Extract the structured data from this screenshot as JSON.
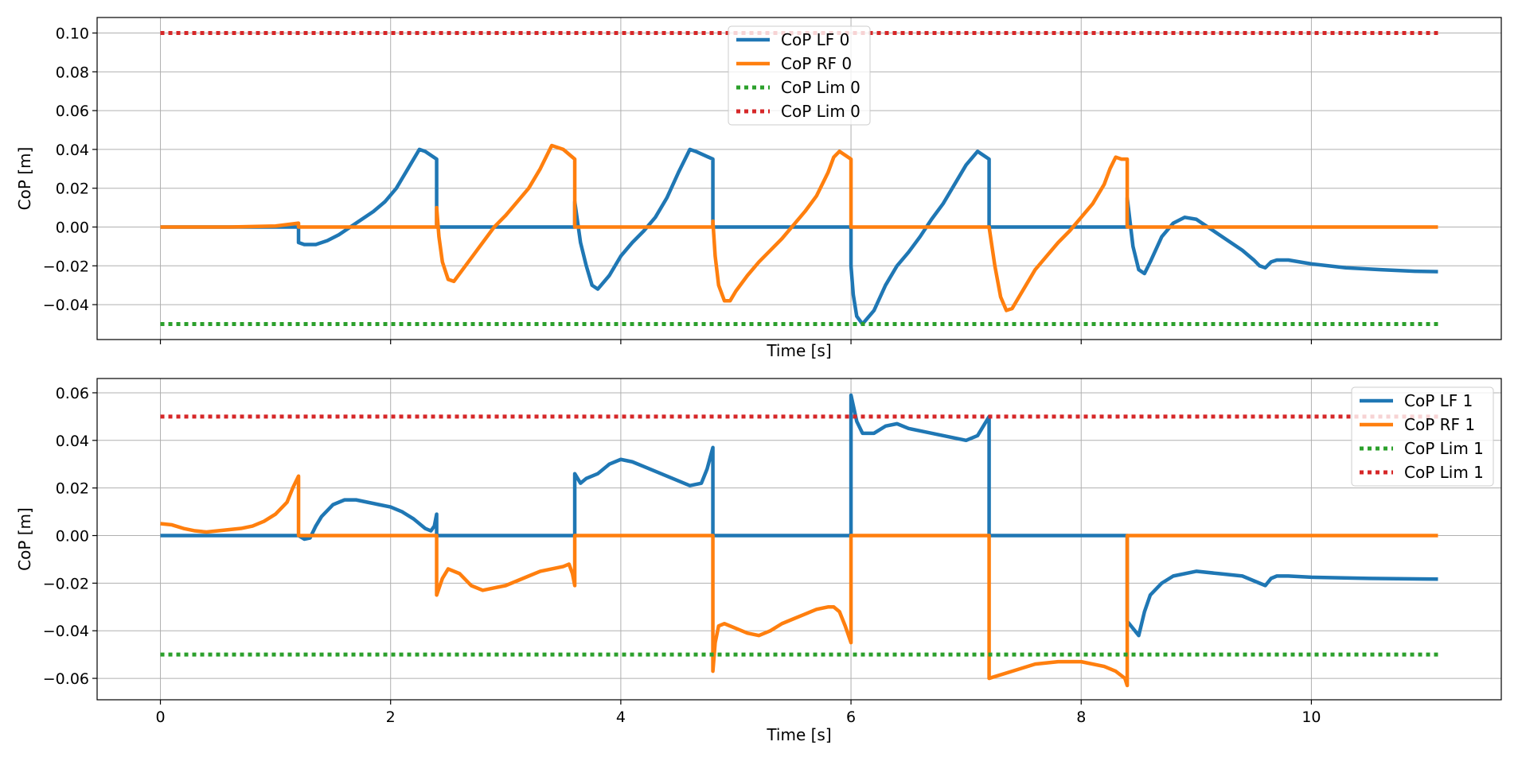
{
  "chart_data": [
    {
      "type": "line",
      "xlabel": "Time [s]",
      "ylabel": "CoP [m]",
      "xlim": [
        -0.55,
        11.65
      ],
      "ylim": [
        -0.058,
        0.108
      ],
      "xticks": [
        0,
        2,
        4,
        6,
        8,
        10
      ],
      "show_xtick_labels": false,
      "yticks": [
        -0.04,
        -0.02,
        0.0,
        0.02,
        0.04,
        0.06,
        0.08,
        0.1
      ],
      "ytick_labels": [
        "−0.04",
        "−0.02",
        "0.00",
        "0.02",
        "0.04",
        "0.06",
        "0.08",
        "0.10"
      ],
      "grid": true,
      "legend_position": "top-center",
      "series": [
        {
          "name": "CoP LF 0",
          "color": "#1f77b4",
          "style": "solid",
          "x": [
            0,
            1.2,
            1.2,
            1.2,
            1.25,
            1.35,
            1.45,
            1.55,
            1.65,
            1.75,
            1.85,
            1.95,
            2.05,
            2.15,
            2.25,
            2.3,
            2.4,
            2.4,
            3.6,
            3.6,
            3.65,
            3.7,
            3.75,
            3.8,
            3.9,
            4.0,
            4.1,
            4.2,
            4.3,
            4.4,
            4.5,
            4.6,
            4.65,
            4.8,
            4.8,
            6.0,
            6.0,
            6.02,
            6.05,
            6.1,
            6.2,
            6.3,
            6.4,
            6.5,
            6.6,
            6.7,
            6.8,
            6.9,
            7.0,
            7.1,
            7.2,
            7.2,
            8.4,
            8.4,
            8.45,
            8.5,
            8.55,
            8.6,
            8.7,
            8.8,
            8.9,
            9.0,
            9.1,
            9.2,
            9.3,
            9.4,
            9.5,
            9.55,
            9.6,
            9.65,
            9.7,
            9.8,
            10.0,
            10.3,
            10.6,
            10.9,
            11.1
          ],
          "y": [
            0.0,
            0.0,
            0.0,
            -0.008,
            -0.009,
            -0.009,
            -0.007,
            -0.004,
            0.0,
            0.004,
            0.008,
            0.013,
            0.02,
            0.03,
            0.04,
            0.039,
            0.035,
            0.0,
            0.0,
            0.013,
            -0.008,
            -0.02,
            -0.03,
            -0.032,
            -0.025,
            -0.015,
            -0.008,
            -0.002,
            0.005,
            0.015,
            0.028,
            0.04,
            0.039,
            0.035,
            0.0,
            0.0,
            -0.02,
            -0.035,
            -0.046,
            -0.05,
            -0.043,
            -0.03,
            -0.02,
            -0.013,
            -0.005,
            0.004,
            0.012,
            0.022,
            0.032,
            0.039,
            0.035,
            0.0,
            0.0,
            0.015,
            -0.01,
            -0.022,
            -0.024,
            -0.018,
            -0.005,
            0.002,
            0.005,
            0.004,
            0.0,
            -0.004,
            -0.008,
            -0.012,
            -0.017,
            -0.02,
            -0.021,
            -0.018,
            -0.017,
            -0.017,
            -0.019,
            -0.021,
            -0.022,
            -0.0228,
            -0.023
          ]
        },
        {
          "name": "CoP RF 0",
          "color": "#ff7f0e",
          "style": "solid",
          "x": [
            0,
            0.6,
            1.0,
            1.2,
            1.2,
            2.4,
            2.4,
            2.42,
            2.45,
            2.5,
            2.55,
            2.6,
            2.7,
            2.8,
            2.9,
            3.0,
            3.1,
            3.2,
            3.3,
            3.4,
            3.5,
            3.6,
            3.6,
            4.8,
            4.8,
            4.82,
            4.85,
            4.9,
            4.95,
            5.0,
            5.1,
            5.2,
            5.3,
            5.4,
            5.5,
            5.6,
            5.7,
            5.8,
            5.85,
            5.9,
            6.0,
            6.0,
            7.2,
            7.2,
            7.25,
            7.3,
            7.35,
            7.4,
            7.5,
            7.6,
            7.7,
            7.8,
            7.9,
            8.0,
            8.1,
            8.2,
            8.25,
            8.3,
            8.35,
            8.38,
            8.4,
            8.4,
            11.1
          ],
          "y": [
            0.0,
            0.0,
            0.0005,
            0.002,
            0.0,
            0.0,
            0.01,
            -0.005,
            -0.018,
            -0.027,
            -0.028,
            -0.024,
            -0.016,
            -0.008,
            0.0,
            0.006,
            0.013,
            0.02,
            0.03,
            0.042,
            0.04,
            0.035,
            0.0,
            0.0,
            0.003,
            -0.015,
            -0.03,
            -0.038,
            -0.038,
            -0.033,
            -0.025,
            -0.018,
            -0.012,
            -0.006,
            0.001,
            0.008,
            0.016,
            0.028,
            0.036,
            0.039,
            0.035,
            0.0,
            0.0,
            0.0,
            -0.02,
            -0.036,
            -0.043,
            -0.042,
            -0.032,
            -0.022,
            -0.015,
            -0.008,
            -0.002,
            0.005,
            0.012,
            0.022,
            0.03,
            0.036,
            0.035,
            0.035,
            0.035,
            0.0,
            0.0
          ]
        },
        {
          "name": "CoP Lim 0",
          "color": "#2ca02c",
          "style": "dotted",
          "x": [
            0,
            11.1
          ],
          "y": [
            -0.05,
            -0.05
          ]
        },
        {
          "name": "CoP Lim 0",
          "color": "#d62728",
          "style": "dotted",
          "x": [
            0,
            11.1
          ],
          "y": [
            0.1,
            0.1
          ]
        }
      ]
    },
    {
      "type": "line",
      "xlabel": "Time [s]",
      "ylabel": "CoP [m]",
      "xlim": [
        -0.55,
        11.65
      ],
      "ylim": [
        -0.069,
        0.066
      ],
      "xticks": [
        0,
        2,
        4,
        6,
        8,
        10
      ],
      "show_xtick_labels": true,
      "xtick_labels": [
        "0",
        "2",
        "4",
        "6",
        "8",
        "10"
      ],
      "yticks": [
        -0.06,
        -0.04,
        -0.02,
        0.0,
        0.02,
        0.04,
        0.06
      ],
      "ytick_labels": [
        "−0.06",
        "−0.04",
        "−0.02",
        "0.00",
        "0.02",
        "0.04",
        "0.06"
      ],
      "grid": true,
      "legend_position": "top-right",
      "series": [
        {
          "name": "CoP LF 1",
          "color": "#1f77b4",
          "style": "solid",
          "x": [
            0,
            1.2,
            1.2,
            1.25,
            1.3,
            1.35,
            1.4,
            1.5,
            1.6,
            1.7,
            1.8,
            1.9,
            2.0,
            2.1,
            2.2,
            2.3,
            2.35,
            2.38,
            2.4,
            2.4,
            3.6,
            3.6,
            3.65,
            3.7,
            3.8,
            3.9,
            4.0,
            4.1,
            4.2,
            4.3,
            4.4,
            4.5,
            4.6,
            4.7,
            4.75,
            4.8,
            4.8,
            6.0,
            6.0,
            6.05,
            6.1,
            6.2,
            6.3,
            6.4,
            6.5,
            6.6,
            6.8,
            7.0,
            7.1,
            7.2,
            7.2,
            8.4,
            8.4,
            8.5,
            8.55,
            8.6,
            8.7,
            8.8,
            9.0,
            9.2,
            9.4,
            9.5,
            9.6,
            9.65,
            9.7,
            9.8,
            10.0,
            10.5,
            11.1
          ],
          "y": [
            0.0,
            0.0,
            0.0,
            -0.0015,
            -0.001,
            0.004,
            0.008,
            0.013,
            0.015,
            0.015,
            0.014,
            0.013,
            0.012,
            0.01,
            0.007,
            0.003,
            0.002,
            0.004,
            0.009,
            0.0,
            0.0,
            0.026,
            0.022,
            0.024,
            0.026,
            0.03,
            0.032,
            0.031,
            0.029,
            0.027,
            0.025,
            0.023,
            0.021,
            0.022,
            0.028,
            0.037,
            0.0,
            0.0,
            0.059,
            0.048,
            0.043,
            0.043,
            0.046,
            0.047,
            0.045,
            0.044,
            0.042,
            0.04,
            0.042,
            0.05,
            0.0,
            0.0,
            -0.036,
            -0.042,
            -0.032,
            -0.025,
            -0.02,
            -0.017,
            -0.015,
            -0.016,
            -0.017,
            -0.019,
            -0.021,
            -0.018,
            -0.017,
            -0.017,
            -0.0175,
            -0.018,
            -0.0183
          ]
        },
        {
          "name": "CoP RF 1",
          "color": "#ff7f0e",
          "style": "solid",
          "x": [
            0,
            0.1,
            0.2,
            0.3,
            0.4,
            0.5,
            0.6,
            0.7,
            0.8,
            0.9,
            1.0,
            1.1,
            1.15,
            1.2,
            1.2,
            2.4,
            2.4,
            2.45,
            2.5,
            2.6,
            2.7,
            2.8,
            2.9,
            3.0,
            3.1,
            3.2,
            3.3,
            3.4,
            3.5,
            3.55,
            3.58,
            3.6,
            3.6,
            4.8,
            4.8,
            4.82,
            4.85,
            4.9,
            5.0,
            5.1,
            5.2,
            5.3,
            5.4,
            5.5,
            5.6,
            5.7,
            5.8,
            5.85,
            5.9,
            5.95,
            6.0,
            6.0,
            7.2,
            7.2,
            7.4,
            7.6,
            7.8,
            8.0,
            8.2,
            8.3,
            8.38,
            8.4,
            8.4,
            11.1
          ],
          "y": [
            0.005,
            0.0045,
            0.003,
            0.002,
            0.0015,
            0.002,
            0.0025,
            0.003,
            0.004,
            0.006,
            0.009,
            0.014,
            0.02,
            0.025,
            0.0,
            0.0,
            -0.025,
            -0.018,
            -0.014,
            -0.016,
            -0.021,
            -0.023,
            -0.022,
            -0.021,
            -0.019,
            -0.017,
            -0.015,
            -0.014,
            -0.013,
            -0.012,
            -0.016,
            -0.021,
            0.0,
            0.0,
            -0.057,
            -0.045,
            -0.038,
            -0.037,
            -0.039,
            -0.041,
            -0.042,
            -0.04,
            -0.037,
            -0.035,
            -0.033,
            -0.031,
            -0.03,
            -0.03,
            -0.032,
            -0.038,
            -0.045,
            0.0,
            0.0,
            -0.06,
            -0.057,
            -0.054,
            -0.053,
            -0.053,
            -0.055,
            -0.057,
            -0.06,
            -0.063,
            0.0,
            0.0
          ]
        },
        {
          "name": "CoP Lim 1",
          "color": "#2ca02c",
          "style": "dotted",
          "x": [
            0,
            11.1
          ],
          "y": [
            -0.05,
            -0.05
          ]
        },
        {
          "name": "CoP Lim 1",
          "color": "#d62728",
          "style": "dotted",
          "x": [
            0,
            11.1
          ],
          "y": [
            0.05,
            0.05
          ]
        }
      ]
    }
  ]
}
